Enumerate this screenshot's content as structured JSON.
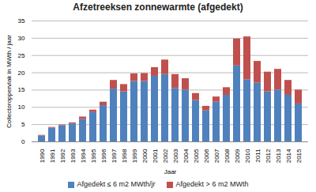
{
  "chart_data": {
    "type": "bar",
    "title": "Afzetreeksen zonnewarmte (afgedekt)",
    "x_label": "Jaar",
    "y_label": "Collectoroppervlak in MWth / jaar",
    "categories": [
      "1990",
      "1991",
      "1992",
      "1993",
      "1994",
      "1995",
      "1996",
      "1997",
      "1998",
      "1999",
      "2000",
      "2001",
      "2002",
      "2003",
      "2004",
      "2005",
      "2006",
      "2007",
      "2008",
      "2009",
      "2010",
      "2011",
      "2012",
      "2013",
      "2014",
      "2015"
    ],
    "series": [
      {
        "name": "Afgedekt ≤ 6 m2 MWth/jr",
        "color": "#4f81bd",
        "values": [
          1.7,
          4.0,
          4.7,
          5.2,
          6.5,
          8.5,
          10.5,
          15.3,
          14.5,
          17.5,
          17.5,
          19.0,
          19.5,
          15.5,
          15.0,
          12.0,
          9.0,
          11.5,
          13.5,
          22.0,
          18.0,
          17.0,
          14.5,
          15.0,
          13.5,
          11.0
        ]
      },
      {
        "name": "Afgedekt > 6 m2 MWth",
        "color": "#c0504d",
        "values": [
          0.2,
          0.2,
          0.2,
          0.3,
          0.7,
          0.7,
          1.0,
          2.5,
          2.1,
          2.2,
          2.3,
          2.5,
          4.2,
          4.0,
          3.3,
          2.0,
          1.3,
          1.5,
          2.2,
          7.8,
          12.4,
          6.3,
          5.7,
          6.0,
          4.3,
          4.0
        ]
      }
    ],
    "stacked": true,
    "ylim": [
      0,
      35
    ],
    "yticks": [
      0,
      5,
      10,
      15,
      20,
      25,
      30,
      35
    ],
    "grid": true,
    "legend": "bottom"
  }
}
